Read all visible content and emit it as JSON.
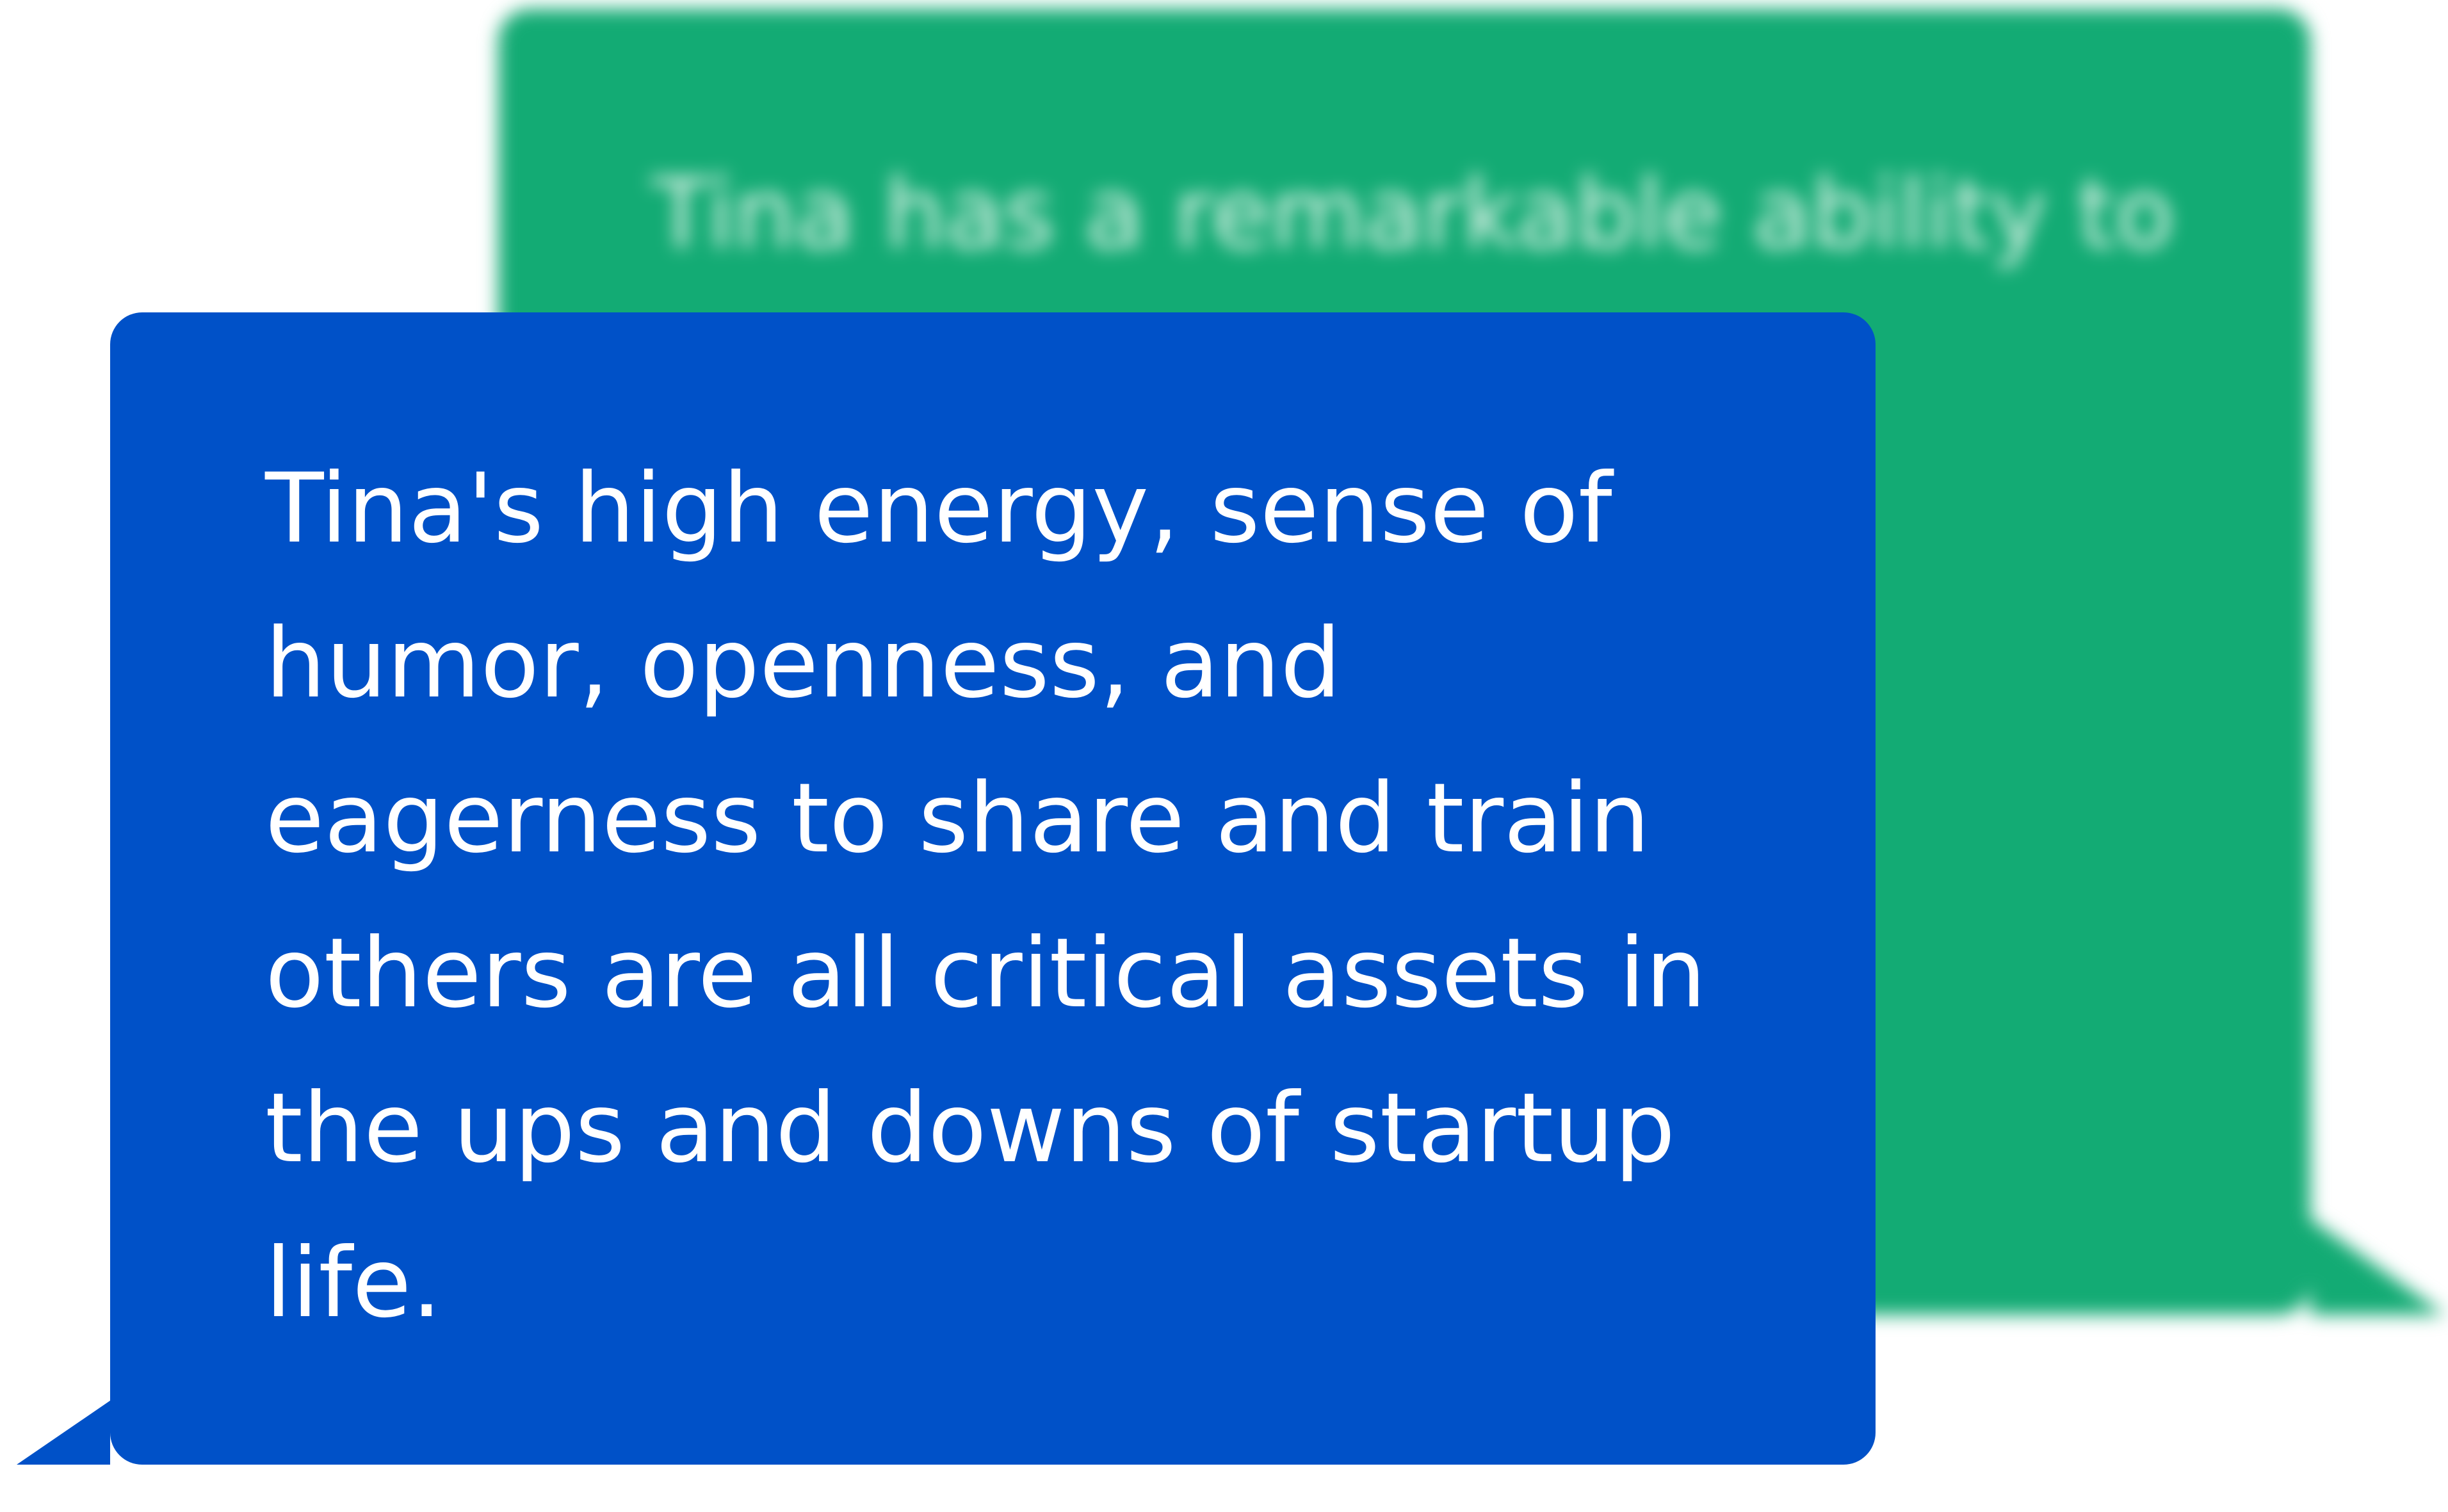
{
  "back_bubble": {
    "text": "Tina has a remarkable ability to\n…ere\n…e\n\n…Tina's\n…o\n…t to ...",
    "color": "#13ab74"
  },
  "front_bubble": {
    "text": "Tina's high energy, sense of\nhumor, openness, and\neagerness to share and train\nothers are all critical assets in\nthe ups and downs of startup\nlife.",
    "color": "#0051c8"
  }
}
